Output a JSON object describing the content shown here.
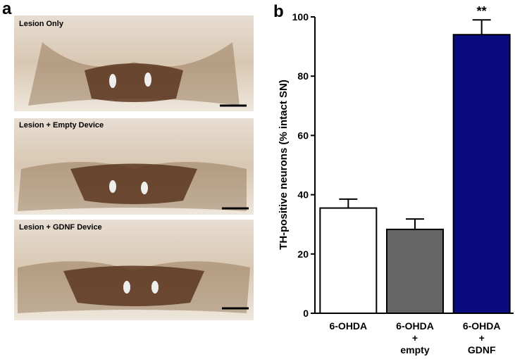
{
  "panel_a": {
    "label": "a",
    "captions": [
      "Lesion Only",
      "Lesion + Empty Device",
      "Lesion + GDNF Device"
    ]
  },
  "chart_data": {
    "type": "bar",
    "panel_label": "b",
    "y_label": "TH-positive neurons (% intact SN)",
    "categories": [
      [
        "6-OHDA"
      ],
      [
        "6-OHDA",
        "+",
        "empty"
      ],
      [
        "6-OHDA",
        "+",
        "GDNF"
      ]
    ],
    "values": [
      35.5,
      28.3,
      94
    ],
    "errors": [
      3,
      3.5,
      5
    ],
    "colors": [
      "#ffffff",
      "#666666",
      "#0b0b80"
    ],
    "annotations": [
      null,
      null,
      "**"
    ],
    "ylim": [
      0,
      100
    ],
    "yticks": [
      0,
      20,
      40,
      60,
      80,
      100
    ]
  }
}
